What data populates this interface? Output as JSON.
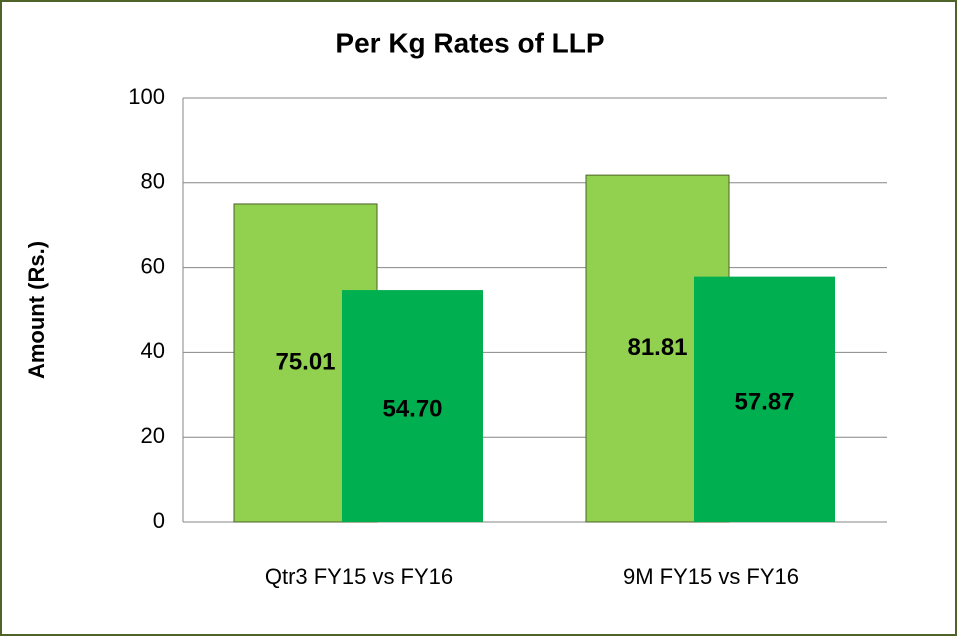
{
  "chart_data": {
    "type": "bar",
    "title": "Per Kg Rates of LLP",
    "y_label": "Amount (Rs.)",
    "categories": [
      "Qtr3 FY15 vs FY16",
      "9M FY15 vs FY16"
    ],
    "series": [
      {
        "color": "#92d050",
        "values": [
          75.01,
          81.81
        ],
        "value_labels": [
          "75.01",
          "81.81"
        ]
      },
      {
        "color": "#00b050",
        "values": [
          54.7,
          57.87
        ],
        "value_labels": [
          "54.70",
          "57.87"
        ]
      }
    ],
    "ylim": [
      0,
      100
    ],
    "yticks": [
      0,
      20,
      40,
      60,
      80,
      100
    ],
    "grid": true
  }
}
